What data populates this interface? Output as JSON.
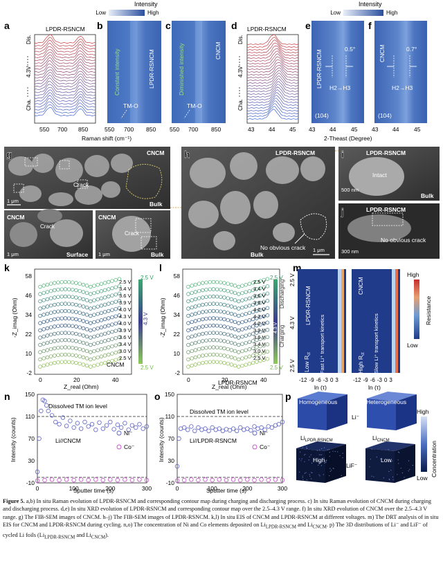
{
  "colors": {
    "panel_blue": "#3f68b8",
    "panel_dark": "#1f3b8a",
    "red_curve": "#c8392f",
    "ni_color": "#5b63c4",
    "co_color": "#c44fc9",
    "sem_bg": "#3c3c3c",
    "dashed": "#222222"
  },
  "top": {
    "intensity_title_left": "Intensity",
    "low_left": "Low",
    "high_left": "High",
    "intensity_title_right": "Intensity",
    "low_right": "Low",
    "high_right": "High",
    "a": {
      "letter": "a",
      "title": "LPDR-RSNCM",
      "y_top": "Dis.",
      "y_bottom": "Cha.",
      "y_mid": "4.3V",
      "xticks": [
        "550",
        "700",
        "850"
      ]
    },
    "b": {
      "letter": "b",
      "label_main": "LPDR-RSNCM",
      "label_side": "Constant intensity",
      "note": "TM-O"
    },
    "c": {
      "letter": "c",
      "label_main": "CNCM",
      "label_side": "Diminished intensity",
      "note": "TM-O",
      "xticks": [
        "550",
        "700",
        "850"
      ]
    },
    "raman_xlabel": "Raman shift (cm⁻¹)",
    "d": {
      "letter": "d",
      "title": "LPDR-RSNCM",
      "y_top": "Dis.",
      "y_bottom": "Cha.",
      "y_mid": "4.3V",
      "xticks": [
        "43",
        "44",
        "45"
      ]
    },
    "e": {
      "letter": "e",
      "label_main": "LPDR-RSNCM",
      "angle": "0.5°",
      "transition": "H2→H3",
      "peak": "(104)",
      "xticks": [
        "43",
        "44",
        "45"
      ]
    },
    "f": {
      "letter": "f",
      "label_main": "CNCM",
      "angle": "0.7°",
      "transition": "H2→H3",
      "peak": "(104)",
      "xticks": [
        "43",
        "44",
        "45"
      ]
    },
    "xrd_xlabel": "2-Theast (Degree)"
  },
  "sem": {
    "g": {
      "letter": "g",
      "title": "CNCM",
      "crack": "Crack",
      "scale": "1 μm",
      "corner": "Bulk"
    },
    "g2": {
      "title": "CNCM",
      "crack": "Crack",
      "scale": "1 μm",
      "corner": "Surface"
    },
    "g3": {
      "title": "CNCM",
      "crack": "Crack",
      "scale": "1 μm",
      "corner": "Bulk"
    },
    "h": {
      "letter": "h",
      "title": "LPDR-RSNCM",
      "note": "No obvious crack",
      "scale": "1 μm",
      "corner": "Bulk"
    },
    "i": {
      "letter": "i",
      "title": "LPDR-RSNCM",
      "note": "Intact",
      "scale": "500 nm",
      "corner": "Bulk"
    },
    "j": {
      "letter": "j",
      "title": "LPDR-RSNCM",
      "note": "No obvious crack",
      "scale": "300 nm"
    }
  },
  "eis": {
    "k": {
      "letter": "k",
      "ylabel": "-Z_imag (Ohm)",
      "xlabel": "Z_real (Ohm)",
      "yticks": [
        "58",
        "46",
        "34",
        "22",
        "10",
        "-2"
      ],
      "xticks": [
        "0",
        "20",
        "40"
      ],
      "name": "CNCM",
      "voltages": [
        "2.5 V",
        "3.4 V",
        "3.6 V",
        "3.9 V",
        "4.0 V",
        "4.3 V",
        "4.0 V",
        "3.9 V",
        "3.6 V",
        "3.4 V",
        "3.0 V",
        "2.5 V"
      ],
      "bar_top": "2.5 V",
      "bar_mid": "4.3 V",
      "bar_bottom": "2.5 V"
    },
    "l": {
      "letter": "l",
      "ylabel": "-Z_imag (Ohm)",
      "xlabel": "Z_real (Ohm)",
      "yticks": [
        "58",
        "46",
        "34",
        "22",
        "10",
        "-2"
      ],
      "xticks": [
        "0",
        "20",
        "40"
      ],
      "name": "LPDR-RSNCM",
      "voltages": [
        "2.5 V",
        "3.4 V",
        "3.6 V",
        "3.9 V",
        "4.0 V",
        "4.3 V",
        "4.0 V",
        "3.9 V",
        "3.6 V",
        "3.4 V",
        "3.0 V",
        "2.5 V"
      ],
      "bar_top": "2.5 V",
      "bar_mid": "4.3 V",
      "bar_bottom": "2.5 V",
      "discharging": "Discharging",
      "charging": "Charging"
    },
    "m": {
      "letter": "m",
      "y_top": "2.5 V",
      "y_mid": "4.3 V",
      "y_bottom": "2.5 V",
      "left_name": "LPDR-RSNCM",
      "left_kin": "Fast Li⁺ transport kinetics",
      "left_r": "Low R",
      "right_name": "CNCM",
      "right_kin": "Slow Li⁺ transport kinetics",
      "right_r": "High R",
      "r_sub": "ct",
      "xticks": [
        "-12",
        "-9",
        "-6",
        "-3",
        "0",
        "3"
      ],
      "xlabel": "ln (τ)",
      "bar_high": "High",
      "bar_low": "Low",
      "bar_label": "Resistance"
    }
  },
  "chart_data": [
    {
      "type": "scatter",
      "panel": "n",
      "title": "Dissolved TM ion level",
      "xlabel": "Sputter time (s)",
      "ylabel": "Intensity (counts)",
      "xlim": [
        0,
        300
      ],
      "ylim": [
        -10,
        150
      ],
      "xticks": [
        "0",
        "100",
        "200",
        "300"
      ],
      "yticks": [
        "150",
        "110",
        "70",
        "30",
        "-10"
      ],
      "label": "Li//CNCM",
      "hline": 110,
      "series": [
        {
          "name": "Ni⁻",
          "x": [
            0,
            5,
            10,
            15,
            20,
            25,
            30,
            40,
            50,
            60,
            70,
            80,
            90,
            100,
            110,
            120,
            130,
            140,
            150,
            160,
            170,
            180,
            190,
            200,
            210,
            220,
            230,
            240,
            250,
            260,
            270,
            280,
            290,
            300
          ],
          "y": [
            10,
            70,
            120,
            140,
            138,
            130,
            120,
            112,
            100,
            96,
            108,
            93,
            102,
            90,
            98,
            88,
            100,
            92,
            96,
            86,
            99,
            88,
            94,
            100,
            87,
            95,
            90,
            98,
            86,
            94,
            90,
            96,
            88,
            92
          ]
        },
        {
          "name": "Co⁻",
          "x": [
            0,
            20,
            40,
            60,
            80,
            100,
            120,
            140,
            160,
            180,
            200,
            220,
            240,
            260,
            280,
            300
          ],
          "y": [
            -6,
            -5,
            -4,
            -5,
            -4,
            -5,
            -4,
            -5,
            -4,
            -5,
            -4,
            -5,
            -4,
            -5,
            -4,
            -5
          ]
        }
      ]
    },
    {
      "type": "scatter",
      "panel": "o",
      "title": "Dissolved TM ion level",
      "xlabel": "Sputter time (s)",
      "ylabel": "Intensity (counts)",
      "xlim": [
        0,
        300
      ],
      "ylim": [
        -10,
        150
      ],
      "xticks": [
        "0",
        "100",
        "200",
        "300"
      ],
      "yticks": [
        "150",
        "110",
        "70",
        "30",
        "-10"
      ],
      "label": "Li//LPDR-RSNCM",
      "hline": 110,
      "series": [
        {
          "name": "Ni⁻",
          "x": [
            0,
            5,
            10,
            20,
            30,
            40,
            50,
            60,
            70,
            80,
            90,
            100,
            110,
            120,
            130,
            140,
            150,
            160,
            170,
            180,
            190,
            200,
            210,
            220,
            230,
            240,
            250,
            260,
            270,
            280,
            290,
            300
          ],
          "y": [
            20,
            70,
            88,
            90,
            86,
            92,
            84,
            90,
            86,
            88,
            84,
            90,
            86,
            88,
            84,
            87,
            85,
            88,
            84,
            90,
            86,
            88,
            85,
            92,
            88,
            90,
            86,
            92,
            90,
            94,
            96,
            100
          ]
        },
        {
          "name": "Co⁻",
          "x": [
            0,
            20,
            40,
            60,
            80,
            100,
            120,
            140,
            160,
            180,
            200,
            220,
            240,
            260,
            280,
            300
          ],
          "y": [
            -6,
            -5,
            -4,
            -5,
            -4,
            -5,
            -4,
            -5,
            -4,
            -5,
            -4,
            -5,
            -4,
            -5,
            -4,
            -5
          ]
        }
      ]
    }
  ],
  "p": {
    "letter": "p",
    "homogeneous": "Homogeneous",
    "heterogeneous": "Heterogeneous",
    "li": "Li⁻",
    "lif": "LiF⁻",
    "li_left": "Li",
    "li_left_sub": "LPDR-RSNCM",
    "li_right": "Li",
    "li_right_sub": "CNCM",
    "high": "High",
    "low": "Low",
    "bar_high": "High",
    "bar_low": "Low",
    "bar_label": "Concentration"
  },
  "panel_n_letter": "n",
  "panel_o_letter": "o",
  "caption": {
    "fig": "Figure 5.",
    "text": " a,b) In situ Raman evolution of LPDR-RSNCM and corresponding contour map during charging and discharging process. c) In situ Raman evolution of CNCM during charging and discharging process. d,e) In situ XRD evolution of LPDR-RSNCM and corresponding contour map over the 2.5–4.3 V range. f) In situ XRD evolution of CNCM over the 2.5–4.3 V range. g) The FIB-SEM images of CNCM. h–j) The FIB-SEM images of LPDR-RSNCM. k,l) In situ EIS of CNCM and LPDR-RSNCM at different voltages. m) The DRT analysis of in situ EIS for CNCM and LPDR-RSNCM during cycling. n,o) The concentration of Ni and Co elements deposited on Li",
    "sub1": "LPDR-RSNCM",
    "mid": " and Li",
    "sub2": "CNCM",
    "tail": ". p) The 3D distributions of Li⁻ and LiF⁻ of cycled Li foils (Li",
    "sub3": "LPDR-RSNCM",
    "and2": " and Li",
    "sub4": "CNCM",
    "end": ")."
  }
}
